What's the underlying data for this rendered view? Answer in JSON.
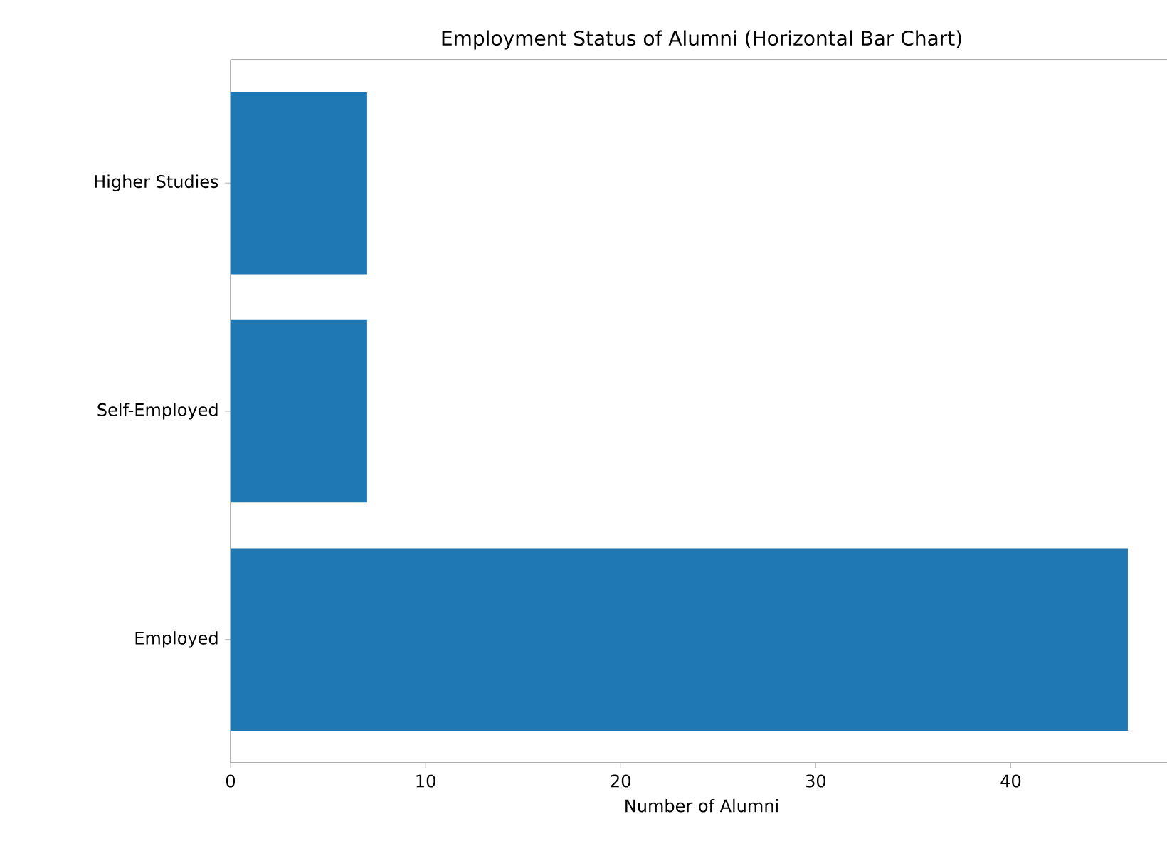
{
  "chart_data": {
    "type": "bar",
    "orientation": "horizontal",
    "title": "Employment Status of Alumni (Horizontal Bar Chart)",
    "xlabel": "Number of Alumni",
    "categories": [
      "Higher Studies",
      "Self-Employed",
      "Employed"
    ],
    "values": [
      7,
      7,
      46
    ],
    "color": "#1f77b4",
    "xlim": [
      0,
      48.3
    ],
    "xticks": [
      0,
      10,
      20,
      30,
      40
    ]
  }
}
